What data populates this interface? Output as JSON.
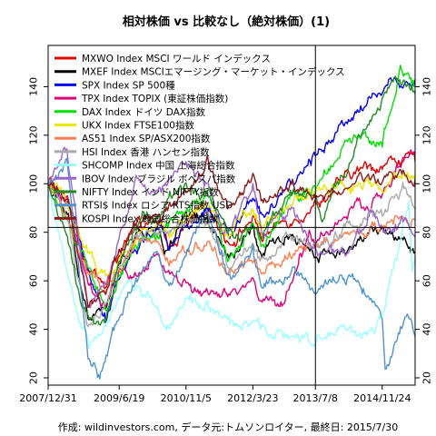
{
  "chart_data": {
    "type": "line",
    "title": "相対株価 vs 比較なし（絶対株価）(1)",
    "caption": "作成: wildinvestors.com, データ元:トムソンロイター, 最終日: 2015/7/30",
    "x_tick_labels": [
      "2007/12/31",
      "2009/6/19",
      "2010/11/5",
      "2012/3/23",
      "2013/7/8",
      "2014/11/24"
    ],
    "x_ticks": [
      "2007-12-31",
      "2009-06-19",
      "2010-11-05",
      "2012-03-23",
      "2013-07-08",
      "2014-11-24"
    ],
    "xlim": [
      "2007-12-31",
      "2015-07-30"
    ],
    "ylim": [
      17,
      157
    ],
    "y_ticks": [
      20,
      40,
      60,
      80,
      100,
      120,
      140
    ],
    "y_tick_labels": [
      "20",
      "40",
      "60",
      "80",
      "100",
      "120",
      "140"
    ],
    "reference": {
      "y": 82,
      "x": "2013-07-08"
    },
    "grid": false,
    "legend_position": "top-left",
    "series": [
      {
        "name": "MXWO Index MSCI ワールド インデックス",
        "color": "#e00000",
        "points": [
          [
            "2007-12-31",
            100
          ],
          [
            "2008-06-01",
            92
          ],
          [
            "2008-10-15",
            68
          ],
          [
            "2009-03-09",
            57
          ],
          [
            "2009-06-19",
            72
          ],
          [
            "2009-10-15",
            80
          ],
          [
            "2010-04-15",
            85
          ],
          [
            "2010-07-01",
            74
          ],
          [
            "2010-11-05",
            82
          ],
          [
            "2011-05-01",
            90
          ],
          [
            "2011-10-01",
            76
          ],
          [
            "2012-03-23",
            86
          ],
          [
            "2012-06-01",
            78
          ],
          [
            "2012-12-31",
            86
          ],
          [
            "2013-07-08",
            92
          ],
          [
            "2014-01-15",
            100
          ],
          [
            "2014-07-01",
            106
          ],
          [
            "2014-11-24",
            108
          ],
          [
            "2015-04-30",
            111
          ],
          [
            "2015-07-30",
            109
          ]
        ]
      },
      {
        "name": "MXEF Index MSCIエマージング・マーケット・インデックス",
        "color": "#000000",
        "points": [
          [
            "2007-12-31",
            100
          ],
          [
            "2008-06-01",
            85
          ],
          [
            "2008-10-27",
            45
          ],
          [
            "2009-03-09",
            48
          ],
          [
            "2009-06-19",
            65
          ],
          [
            "2009-10-15",
            78
          ],
          [
            "2010-04-15",
            82
          ],
          [
            "2010-05-25",
            72
          ],
          [
            "2010-11-05",
            85
          ],
          [
            "2011-04-15",
            84
          ],
          [
            "2011-10-01",
            68
          ],
          [
            "2012-03-23",
            80
          ],
          [
            "2012-06-01",
            70
          ],
          [
            "2012-12-31",
            80
          ],
          [
            "2013-07-08",
            72
          ],
          [
            "2014-01-15",
            72
          ],
          [
            "2014-09-01",
            80
          ],
          [
            "2014-11-24",
            78
          ],
          [
            "2015-04-30",
            80
          ],
          [
            "2015-07-30",
            72
          ]
        ]
      },
      {
        "name": "SPX Index SP 500種",
        "color": "#0000ee",
        "points": [
          [
            "2007-12-31",
            100
          ],
          [
            "2008-06-01",
            88
          ],
          [
            "2008-10-15",
            70
          ],
          [
            "2009-03-09",
            46
          ],
          [
            "2009-06-19",
            62
          ],
          [
            "2009-10-15",
            73
          ],
          [
            "2010-04-15",
            82
          ],
          [
            "2010-07-01",
            72
          ],
          [
            "2010-11-05",
            82
          ],
          [
            "2011-05-01",
            92
          ],
          [
            "2011-10-01",
            78
          ],
          [
            "2012-03-23",
            95
          ],
          [
            "2012-06-01",
            88
          ],
          [
            "2012-12-31",
            97
          ],
          [
            "2013-07-08",
            112
          ],
          [
            "2014-01-15",
            125
          ],
          [
            "2014-07-01",
            132
          ],
          [
            "2014-11-24",
            140
          ],
          [
            "2015-03-01",
            142
          ],
          [
            "2015-07-30",
            143
          ]
        ]
      },
      {
        "name": "TPX Index TOPIX (東証株価指数)",
        "color": "#e0007a",
        "points": [
          [
            "2007-12-31",
            100
          ],
          [
            "2008-06-01",
            92
          ],
          [
            "2008-10-27",
            56
          ],
          [
            "2009-03-09",
            48
          ],
          [
            "2009-06-19",
            62
          ],
          [
            "2009-10-15",
            62
          ],
          [
            "2010-04-15",
            68
          ],
          [
            "2010-11-05",
            58
          ],
          [
            "2011-03-15",
            55
          ],
          [
            "2011-10-01",
            52
          ],
          [
            "2012-03-23",
            60
          ],
          [
            "2012-06-01",
            50
          ],
          [
            "2012-11-15",
            52
          ],
          [
            "2013-05-22",
            80
          ],
          [
            "2013-07-08",
            76
          ],
          [
            "2014-01-15",
            85
          ],
          [
            "2014-11-24",
            95
          ],
          [
            "2015-04-30",
            110
          ],
          [
            "2015-07-30",
            112
          ]
        ]
      },
      {
        "name": "DAX Index ドイツ DAX指数",
        "color": "#00e000",
        "points": [
          [
            "2007-12-31",
            100
          ],
          [
            "2008-06-01",
            85
          ],
          [
            "2008-10-15",
            65
          ],
          [
            "2009-03-09",
            46
          ],
          [
            "2009-06-19",
            63
          ],
          [
            "2009-10-15",
            74
          ],
          [
            "2010-04-15",
            80
          ],
          [
            "2010-11-05",
            88
          ],
          [
            "2011-05-01",
            96
          ],
          [
            "2011-09-15",
            68
          ],
          [
            "2012-03-23",
            85
          ],
          [
            "2012-06-01",
            76
          ],
          [
            "2012-12-31",
            95
          ],
          [
            "2013-07-08",
            100
          ],
          [
            "2014-01-15",
            115
          ],
          [
            "2014-07-01",
            120
          ],
          [
            "2014-11-24",
            118
          ],
          [
            "2015-04-10",
            150
          ],
          [
            "2015-07-30",
            140
          ]
        ]
      },
      {
        "name": "UKX Index FTSE100指数",
        "color": "#e8e800",
        "points": [
          [
            "2007-12-31",
            100
          ],
          [
            "2008-06-01",
            92
          ],
          [
            "2008-10-15",
            72
          ],
          [
            "2009-03-09",
            62
          ],
          [
            "2009-06-19",
            68
          ],
          [
            "2009-10-15",
            78
          ],
          [
            "2010-04-15",
            85
          ],
          [
            "2010-07-01",
            76
          ],
          [
            "2010-11-05",
            88
          ],
          [
            "2011-05-01",
            92
          ],
          [
            "2011-10-01",
            80
          ],
          [
            "2012-03-23",
            90
          ],
          [
            "2012-06-01",
            84
          ],
          [
            "2012-12-31",
            90
          ],
          [
            "2013-07-08",
            97
          ],
          [
            "2014-01-15",
            100
          ],
          [
            "2014-11-24",
            100
          ],
          [
            "2015-04-30",
            106
          ],
          [
            "2015-07-30",
            102
          ]
        ]
      },
      {
        "name": "AS51 Index SP/ASX200指数",
        "color": "#ff7f50",
        "points": [
          [
            "2007-12-31",
            100
          ],
          [
            "2008-06-01",
            85
          ],
          [
            "2008-10-27",
            62
          ],
          [
            "2009-03-09",
            55
          ],
          [
            "2009-06-19",
            63
          ],
          [
            "2009-10-15",
            73
          ],
          [
            "2010-04-15",
            75
          ],
          [
            "2010-07-01",
            68
          ],
          [
            "2010-11-05",
            72
          ],
          [
            "2011-05-01",
            74
          ],
          [
            "2011-10-01",
            64
          ],
          [
            "2012-03-23",
            68
          ],
          [
            "2012-06-01",
            62
          ],
          [
            "2012-12-31",
            72
          ],
          [
            "2013-07-08",
            74
          ],
          [
            "2014-01-15",
            78
          ],
          [
            "2014-11-24",
            82
          ],
          [
            "2015-04-30",
            88
          ],
          [
            "2015-07-30",
            85
          ]
        ]
      },
      {
        "name": "HSI Index 香港 ハンセン指数",
        "color": "#aaaaaa",
        "points": [
          [
            "2007-12-31",
            100
          ],
          [
            "2008-06-01",
            85
          ],
          [
            "2008-10-27",
            40
          ],
          [
            "2009-03-09",
            48
          ],
          [
            "2009-06-19",
            65
          ],
          [
            "2009-10-15",
            78
          ],
          [
            "2010-04-15",
            78
          ],
          [
            "2010-11-05",
            85
          ],
          [
            "2011-04-15",
            86
          ],
          [
            "2011-10-01",
            65
          ],
          [
            "2012-03-23",
            75
          ],
          [
            "2012-06-01",
            68
          ],
          [
            "2012-12-31",
            80
          ],
          [
            "2013-07-08",
            76
          ],
          [
            "2014-01-15",
            80
          ],
          [
            "2014-09-01",
            90
          ],
          [
            "2014-11-24",
            85
          ],
          [
            "2015-04-28",
            100
          ],
          [
            "2015-07-30",
            90
          ]
        ]
      },
      {
        "name": "SHCOMP Index 中国 上海総合指数",
        "color": "#99ffff",
        "points": [
          [
            "2007-12-31",
            100
          ],
          [
            "2008-06-01",
            60
          ],
          [
            "2008-11-01",
            32
          ],
          [
            "2009-03-09",
            42
          ],
          [
            "2009-06-19",
            55
          ],
          [
            "2009-08-04",
            62
          ],
          [
            "2009-11-15",
            57
          ],
          [
            "2010-07-05",
            42
          ],
          [
            "2010-11-05",
            52
          ],
          [
            "2011-04-15",
            52
          ],
          [
            "2011-10-01",
            43
          ],
          [
            "2012-03-23",
            43
          ],
          [
            "2012-12-03",
            36
          ],
          [
            "2013-07-08",
            36
          ],
          [
            "2014-01-15",
            37
          ],
          [
            "2014-07-01",
            37
          ],
          [
            "2014-11-24",
            45
          ],
          [
            "2015-06-12",
            93
          ],
          [
            "2015-07-08",
            65
          ],
          [
            "2015-07-30",
            70
          ]
        ]
      },
      {
        "name": "IBOV Index ブラジル ボベスパ指数",
        "color": "#9966cc",
        "points": [
          [
            "2007-12-31",
            100
          ],
          [
            "2008-05-20",
            115
          ],
          [
            "2008-10-27",
            50
          ],
          [
            "2009-03-09",
            60
          ],
          [
            "2009-06-19",
            80
          ],
          [
            "2009-10-15",
            100
          ],
          [
            "2010-04-15",
            100
          ],
          [
            "2010-11-05",
            108
          ],
          [
            "2011-04-15",
            100
          ],
          [
            "2011-08-15",
            80
          ],
          [
            "2012-03-23",
            98
          ],
          [
            "2012-06-01",
            80
          ],
          [
            "2012-12-31",
            92
          ],
          [
            "2013-07-08",
            72
          ],
          [
            "2014-03-15",
            70
          ],
          [
            "2014-09-01",
            92
          ],
          [
            "2014-11-24",
            80
          ],
          [
            "2015-04-30",
            85
          ],
          [
            "2015-07-30",
            78
          ]
        ]
      },
      {
        "name": "NIFTY Index インド NIFTY指数",
        "color": "#228b22",
        "points": [
          [
            "2007-12-31",
            100
          ],
          [
            "2008-06-01",
            75
          ],
          [
            "2008-10-27",
            42
          ],
          [
            "2009-03-09",
            45
          ],
          [
            "2009-06-19",
            70
          ],
          [
            "2009-10-15",
            82
          ],
          [
            "2010-04-15",
            88
          ],
          [
            "2010-11-05",
            100
          ],
          [
            "2011-04-15",
            96
          ],
          [
            "2011-12-15",
            75
          ],
          [
            "2012-03-23",
            85
          ],
          [
            "2012-06-01",
            80
          ],
          [
            "2012-12-31",
            95
          ],
          [
            "2013-07-08",
            95
          ],
          [
            "2013-08-28",
            85
          ],
          [
            "2014-01-15",
            100
          ],
          [
            "2014-06-01",
            120
          ],
          [
            "2014-11-24",
            135
          ],
          [
            "2015-03-03",
            145
          ],
          [
            "2015-07-30",
            137
          ]
        ]
      },
      {
        "name": "RTSI$ Index ロシア RTS指数 USD",
        "color": "#4f94cd",
        "points": [
          [
            "2007-12-31",
            100
          ],
          [
            "2008-05-20",
            110
          ],
          [
            "2008-10-27",
            30
          ],
          [
            "2009-01-23",
            22
          ],
          [
            "2009-06-19",
            45
          ],
          [
            "2009-10-15",
            60
          ],
          [
            "2010-04-15",
            70
          ],
          [
            "2010-07-01",
            58
          ],
          [
            "2010-11-05",
            72
          ],
          [
            "2011-04-15",
            90
          ],
          [
            "2011-10-01",
            60
          ],
          [
            "2012-03-23",
            75
          ],
          [
            "2012-06-01",
            55
          ],
          [
            "2012-12-31",
            65
          ],
          [
            "2013-07-08",
            58
          ],
          [
            "2014-01-15",
            58
          ],
          [
            "2014-06-01",
            60
          ],
          [
            "2014-11-24",
            45
          ],
          [
            "2014-12-16",
            25
          ],
          [
            "2015-05-15",
            45
          ],
          [
            "2015-07-30",
            37
          ]
        ]
      },
      {
        "name": "KOSPI Index 韓国総合株価指数",
        "color": "#8b1a1a",
        "points": [
          [
            "2007-12-31",
            100
          ],
          [
            "2008-06-01",
            92
          ],
          [
            "2008-10-27",
            50
          ],
          [
            "2009-03-09",
            55
          ],
          [
            "2009-06-19",
            72
          ],
          [
            "2009-10-15",
            84
          ],
          [
            "2010-04-15",
            85
          ],
          [
            "2010-11-05",
            95
          ],
          [
            "2011-04-15",
            110
          ],
          [
            "2011-09-15",
            90
          ],
          [
            "2012-03-23",
            100
          ],
          [
            "2012-06-01",
            92
          ],
          [
            "2012-12-31",
            100
          ],
          [
            "2013-07-08",
            94
          ],
          [
            "2014-01-15",
            98
          ],
          [
            "2014-07-01",
            102
          ],
          [
            "2014-11-24",
            100
          ],
          [
            "2015-04-30",
            105
          ],
          [
            "2015-07-30",
            102
          ]
        ]
      }
    ]
  }
}
